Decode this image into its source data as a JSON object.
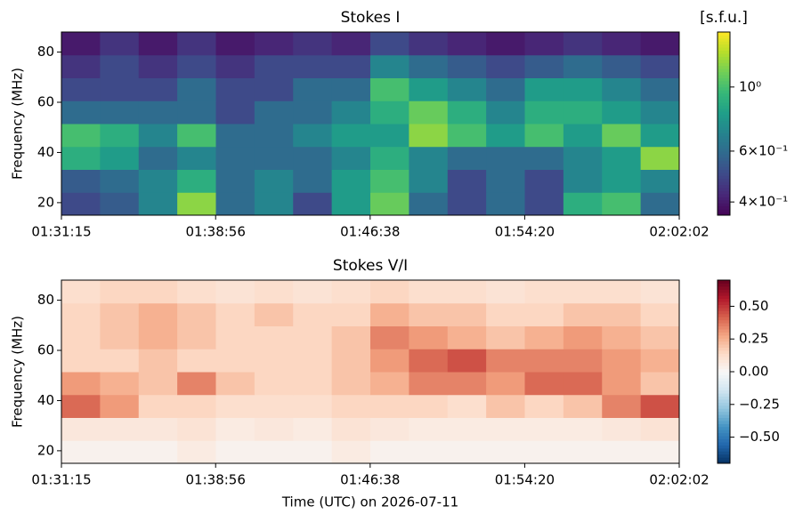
{
  "chart_data": [
    {
      "type": "heatmap",
      "title": "Stokes I",
      "ylabel": "Frequency (MHz)",
      "colorbar_label": "[s.f.u.]",
      "cmap": "viridis",
      "color_scale": "log",
      "xlim": [
        "01:31:15",
        "02:02:02"
      ],
      "xticks": [
        "01:31:15",
        "01:38:56",
        "01:46:38",
        "01:54:20",
        "02:02:02"
      ],
      "ylim": [
        15,
        88
      ],
      "yticks": [
        20,
        40,
        60,
        80
      ],
      "clim": [
        0.36,
        1.55
      ],
      "cticks": [
        {
          "value": 0.4,
          "label": "4×10⁻¹"
        },
        {
          "value": 0.6,
          "label": "6×10⁻¹"
        },
        {
          "value": 1,
          "label": "10⁰"
        }
      ],
      "z": [
        [
          0.5,
          0.55,
          0.7,
          1.2,
          0.6,
          0.7,
          0.5,
          0.8,
          1.1,
          0.6,
          0.5,
          0.6,
          0.5,
          0.9,
          1.0,
          0.6
        ],
        [
          0.55,
          0.6,
          0.7,
          0.9,
          0.6,
          0.7,
          0.6,
          0.8,
          1.0,
          0.7,
          0.5,
          0.6,
          0.5,
          0.7,
          0.8,
          0.7
        ],
        [
          0.9,
          0.8,
          0.6,
          0.7,
          0.6,
          0.6,
          0.6,
          0.7,
          0.9,
          0.7,
          0.6,
          0.6,
          0.6,
          0.7,
          0.8,
          1.2
        ],
        [
          1.0,
          0.9,
          0.7,
          1.0,
          0.6,
          0.6,
          0.7,
          0.8,
          0.8,
          1.2,
          1.0,
          0.8,
          1.0,
          0.8,
          1.1,
          0.8
        ],
        [
          0.6,
          0.6,
          0.6,
          0.6,
          0.5,
          0.6,
          0.6,
          0.7,
          0.9,
          1.1,
          0.9,
          0.7,
          0.9,
          0.9,
          0.8,
          0.7
        ],
        [
          0.5,
          0.5,
          0.5,
          0.6,
          0.5,
          0.5,
          0.6,
          0.6,
          1.0,
          0.8,
          0.7,
          0.6,
          0.8,
          0.8,
          0.7,
          0.6
        ],
        [
          0.45,
          0.5,
          0.45,
          0.5,
          0.45,
          0.5,
          0.5,
          0.5,
          0.7,
          0.6,
          0.55,
          0.5,
          0.55,
          0.6,
          0.55,
          0.5
        ],
        [
          0.4,
          0.45,
          0.4,
          0.45,
          0.4,
          0.42,
          0.45,
          0.42,
          0.5,
          0.45,
          0.42,
          0.4,
          0.42,
          0.45,
          0.42,
          0.4
        ]
      ]
    },
    {
      "type": "heatmap",
      "title": "Stokes V/I",
      "ylabel": "Frequency (MHz)",
      "xlabel": "Time (UTC) on 2026-07-11",
      "cmap": "RdBu_r",
      "color_scale": "linear",
      "xlim": [
        "01:31:15",
        "02:02:02"
      ],
      "xticks": [
        "01:31:15",
        "01:38:56",
        "01:46:38",
        "01:54:20",
        "02:02:02"
      ],
      "ylim": [
        15,
        88
      ],
      "yticks": [
        20,
        40,
        60,
        80
      ],
      "clim": [
        -0.7,
        0.7
      ],
      "cticks": [
        {
          "value": -0.5,
          "label": "−0.50"
        },
        {
          "value": -0.25,
          "label": "−0.25"
        },
        {
          "value": 0,
          "label": "0.00"
        },
        {
          "value": 0.25,
          "label": "0.25"
        },
        {
          "value": 0.5,
          "label": "0.50"
        }
      ],
      "z": [
        [
          0.03,
          0.03,
          0.03,
          0.06,
          0.03,
          0.03,
          0.03,
          0.06,
          0.03,
          0.03,
          0.03,
          0.03,
          0.03,
          0.03,
          0.03,
          0.03
        ],
        [
          0.08,
          0.08,
          0.08,
          0.1,
          0.06,
          0.08,
          0.06,
          0.1,
          0.08,
          0.06,
          0.06,
          0.06,
          0.06,
          0.06,
          0.08,
          0.1
        ],
        [
          0.4,
          0.3,
          0.15,
          0.15,
          0.12,
          0.12,
          0.12,
          0.15,
          0.15,
          0.15,
          0.12,
          0.2,
          0.15,
          0.2,
          0.35,
          0.45
        ],
        [
          0.3,
          0.25,
          0.2,
          0.35,
          0.2,
          0.15,
          0.15,
          0.2,
          0.25,
          0.35,
          0.35,
          0.3,
          0.4,
          0.4,
          0.3,
          0.2
        ],
        [
          0.15,
          0.15,
          0.2,
          0.15,
          0.15,
          0.15,
          0.15,
          0.2,
          0.3,
          0.4,
          0.45,
          0.35,
          0.35,
          0.35,
          0.3,
          0.25
        ],
        [
          0.15,
          0.2,
          0.25,
          0.2,
          0.15,
          0.15,
          0.15,
          0.2,
          0.35,
          0.3,
          0.25,
          0.2,
          0.25,
          0.3,
          0.25,
          0.2
        ],
        [
          0.15,
          0.2,
          0.25,
          0.2,
          0.15,
          0.2,
          0.15,
          0.15,
          0.25,
          0.2,
          0.2,
          0.15,
          0.15,
          0.2,
          0.2,
          0.15
        ],
        [
          0.12,
          0.15,
          0.15,
          0.12,
          0.1,
          0.12,
          0.1,
          0.12,
          0.15,
          0.12,
          0.12,
          0.1,
          0.12,
          0.12,
          0.12,
          0.1
        ]
      ]
    }
  ]
}
